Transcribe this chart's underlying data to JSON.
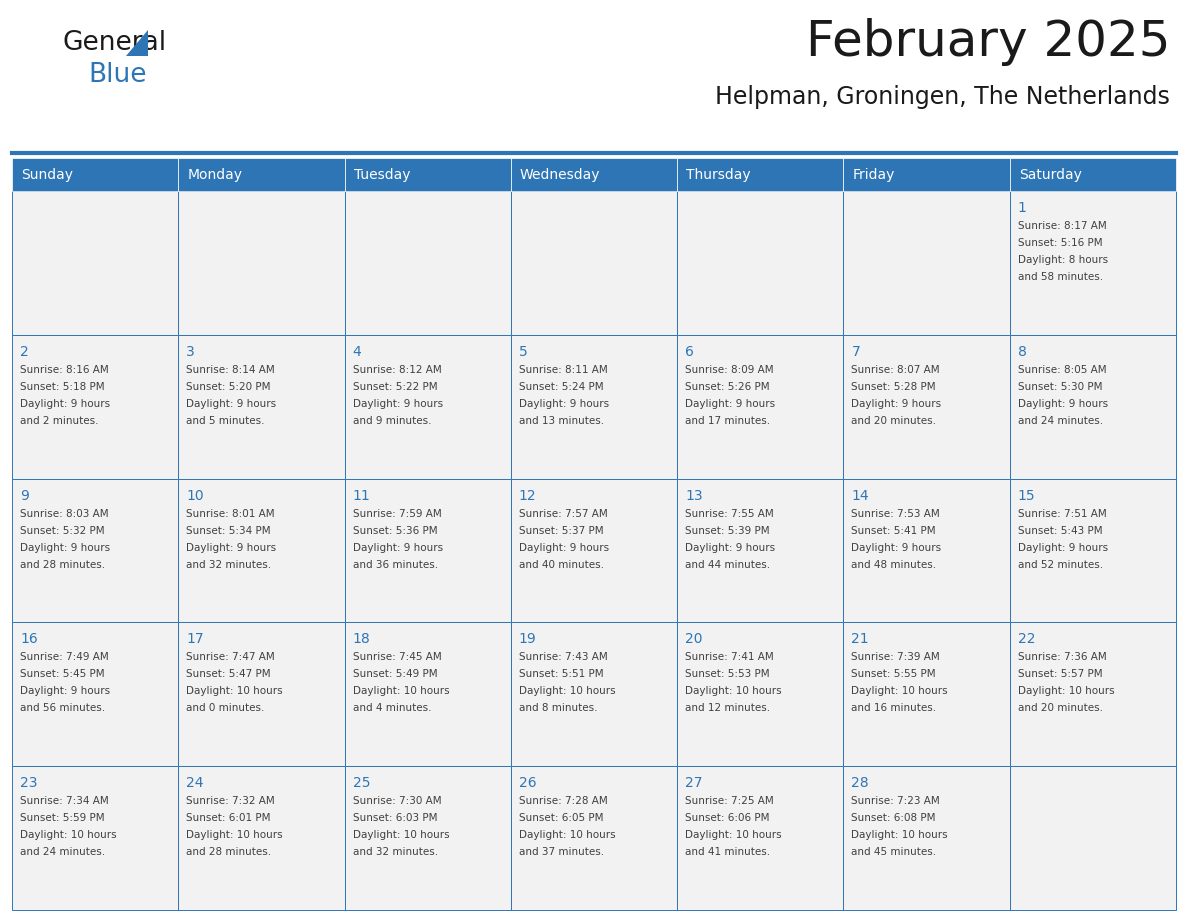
{
  "title": "February 2025",
  "subtitle": "Helpman, Groningen, The Netherlands",
  "days_of_week": [
    "Sunday",
    "Monday",
    "Tuesday",
    "Wednesday",
    "Thursday",
    "Friday",
    "Saturday"
  ],
  "header_bg": "#2E75B6",
  "header_text": "#FFFFFF",
  "cell_bg": "#F2F2F2",
  "border_color": "#2E75B6",
  "text_color": "#404040",
  "day_number_color": "#2E75B6",
  "title_color": "#1a1a1a",
  "logo_general_color": "#1a1a1a",
  "logo_blue_color": "#2E75B6",
  "logo_triangle_color": "#2E75B6",
  "calendar_data": [
    [
      {
        "day": null,
        "sunrise": null,
        "sunset": null,
        "daylight": null
      },
      {
        "day": null,
        "sunrise": null,
        "sunset": null,
        "daylight": null
      },
      {
        "day": null,
        "sunrise": null,
        "sunset": null,
        "daylight": null
      },
      {
        "day": null,
        "sunrise": null,
        "sunset": null,
        "daylight": null
      },
      {
        "day": null,
        "sunrise": null,
        "sunset": null,
        "daylight": null
      },
      {
        "day": null,
        "sunrise": null,
        "sunset": null,
        "daylight": null
      },
      {
        "day": 1,
        "sunrise": "8:17 AM",
        "sunset": "5:16 PM",
        "daylight": "8 hours and 58 minutes."
      }
    ],
    [
      {
        "day": 2,
        "sunrise": "8:16 AM",
        "sunset": "5:18 PM",
        "daylight": "9 hours and 2 minutes."
      },
      {
        "day": 3,
        "sunrise": "8:14 AM",
        "sunset": "5:20 PM",
        "daylight": "9 hours and 5 minutes."
      },
      {
        "day": 4,
        "sunrise": "8:12 AM",
        "sunset": "5:22 PM",
        "daylight": "9 hours and 9 minutes."
      },
      {
        "day": 5,
        "sunrise": "8:11 AM",
        "sunset": "5:24 PM",
        "daylight": "9 hours and 13 minutes."
      },
      {
        "day": 6,
        "sunrise": "8:09 AM",
        "sunset": "5:26 PM",
        "daylight": "9 hours and 17 minutes."
      },
      {
        "day": 7,
        "sunrise": "8:07 AM",
        "sunset": "5:28 PM",
        "daylight": "9 hours and 20 minutes."
      },
      {
        "day": 8,
        "sunrise": "8:05 AM",
        "sunset": "5:30 PM",
        "daylight": "9 hours and 24 minutes."
      }
    ],
    [
      {
        "day": 9,
        "sunrise": "8:03 AM",
        "sunset": "5:32 PM",
        "daylight": "9 hours and 28 minutes."
      },
      {
        "day": 10,
        "sunrise": "8:01 AM",
        "sunset": "5:34 PM",
        "daylight": "9 hours and 32 minutes."
      },
      {
        "day": 11,
        "sunrise": "7:59 AM",
        "sunset": "5:36 PM",
        "daylight": "9 hours and 36 minutes."
      },
      {
        "day": 12,
        "sunrise": "7:57 AM",
        "sunset": "5:37 PM",
        "daylight": "9 hours and 40 minutes."
      },
      {
        "day": 13,
        "sunrise": "7:55 AM",
        "sunset": "5:39 PM",
        "daylight": "9 hours and 44 minutes."
      },
      {
        "day": 14,
        "sunrise": "7:53 AM",
        "sunset": "5:41 PM",
        "daylight": "9 hours and 48 minutes."
      },
      {
        "day": 15,
        "sunrise": "7:51 AM",
        "sunset": "5:43 PM",
        "daylight": "9 hours and 52 minutes."
      }
    ],
    [
      {
        "day": 16,
        "sunrise": "7:49 AM",
        "sunset": "5:45 PM",
        "daylight": "9 hours and 56 minutes."
      },
      {
        "day": 17,
        "sunrise": "7:47 AM",
        "sunset": "5:47 PM",
        "daylight": "10 hours and 0 minutes."
      },
      {
        "day": 18,
        "sunrise": "7:45 AM",
        "sunset": "5:49 PM",
        "daylight": "10 hours and 4 minutes."
      },
      {
        "day": 19,
        "sunrise": "7:43 AM",
        "sunset": "5:51 PM",
        "daylight": "10 hours and 8 minutes."
      },
      {
        "day": 20,
        "sunrise": "7:41 AM",
        "sunset": "5:53 PM",
        "daylight": "10 hours and 12 minutes."
      },
      {
        "day": 21,
        "sunrise": "7:39 AM",
        "sunset": "5:55 PM",
        "daylight": "10 hours and 16 minutes."
      },
      {
        "day": 22,
        "sunrise": "7:36 AM",
        "sunset": "5:57 PM",
        "daylight": "10 hours and 20 minutes."
      }
    ],
    [
      {
        "day": 23,
        "sunrise": "7:34 AM",
        "sunset": "5:59 PM",
        "daylight": "10 hours and 24 minutes."
      },
      {
        "day": 24,
        "sunrise": "7:32 AM",
        "sunset": "6:01 PM",
        "daylight": "10 hours and 28 minutes."
      },
      {
        "day": 25,
        "sunrise": "7:30 AM",
        "sunset": "6:03 PM",
        "daylight": "10 hours and 32 minutes."
      },
      {
        "day": 26,
        "sunrise": "7:28 AM",
        "sunset": "6:05 PM",
        "daylight": "10 hours and 37 minutes."
      },
      {
        "day": 27,
        "sunrise": "7:25 AM",
        "sunset": "6:06 PM",
        "daylight": "10 hours and 41 minutes."
      },
      {
        "day": 28,
        "sunrise": "7:23 AM",
        "sunset": "6:08 PM",
        "daylight": "10 hours and 45 minutes."
      },
      {
        "day": null,
        "sunrise": null,
        "sunset": null,
        "daylight": null
      }
    ]
  ]
}
